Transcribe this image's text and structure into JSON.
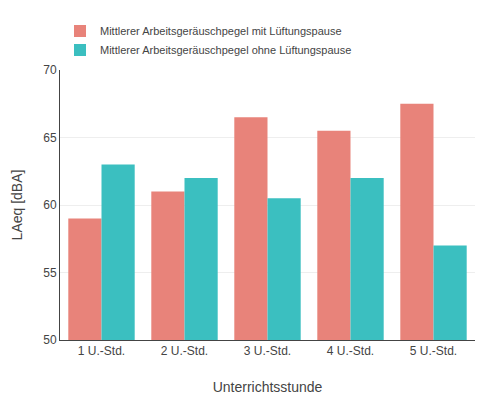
{
  "chart_data": {
    "type": "bar",
    "categories": [
      "1 U.-Std.",
      "2 U.-Std.",
      "3 U.-Std.",
      "4 U.-Std.",
      "5 U.-Std."
    ],
    "series": [
      {
        "name": "Mittlerer Arbeitsgeräuschpegel mit Lüftungspause",
        "color": "#E8837A",
        "values": [
          59.0,
          61.0,
          66.5,
          65.5,
          67.5
        ]
      },
      {
        "name": "Mittlerer Arbeitsgeräuschpegel ohne Lüftungspause",
        "color": "#3BBFC0",
        "values": [
          63.0,
          62.0,
          60.5,
          62.0,
          57.0
        ]
      }
    ],
    "xlabel": "Unterrichtsstunde",
    "ylabel": "LAeq [dBA]",
    "ylim": [
      50,
      70
    ],
    "yticks": [
      50,
      55,
      60,
      65,
      70
    ],
    "grid": true,
    "legend": "upper left"
  }
}
